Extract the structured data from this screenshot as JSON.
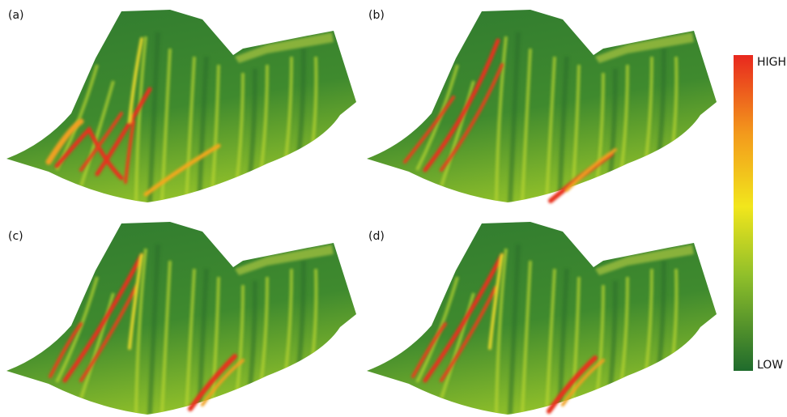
{
  "panels": [
    {
      "label": "(a)"
    },
    {
      "label": "(b)"
    },
    {
      "label": "(c)"
    },
    {
      "label": "(d)"
    }
  ],
  "colorbar": {
    "high_label": "HIGH",
    "low_label": "LOW"
  }
}
